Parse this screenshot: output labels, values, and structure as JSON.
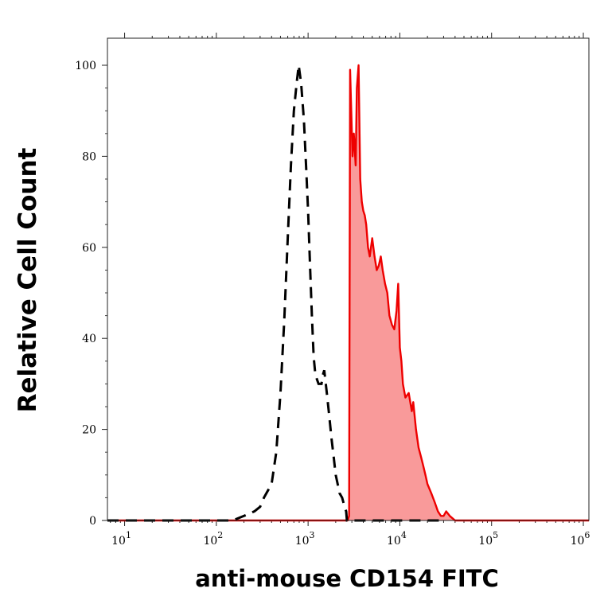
{
  "chart_data": {
    "type": "area",
    "title": "",
    "xlabel": "anti-mouse CD154 FITC",
    "ylabel": "Relative Cell Count",
    "x_scale": "log",
    "xlim": [
      6.5,
      1150000
    ],
    "ylim": [
      0,
      100
    ],
    "x_ticks": [
      {
        "base": "10",
        "exp": "1",
        "value": 10
      },
      {
        "base": "10",
        "exp": "2",
        "value": 100
      },
      {
        "base": "10",
        "exp": "3",
        "value": 1000
      },
      {
        "base": "10",
        "exp": "4",
        "value": 10000
      },
      {
        "base": "10",
        "exp": "5",
        "value": 100000
      },
      {
        "base": "10",
        "exp": "6",
        "value": 1000000
      }
    ],
    "y_ticks": [
      "0",
      "20",
      "40",
      "60",
      "80",
      "100"
    ],
    "grid": false,
    "legend": "none",
    "colors": {
      "stained_line": "#ee0000",
      "stained_fill": "#f99a9a",
      "control_line": "#000000"
    },
    "series": [
      {
        "style": "dashed-black",
        "x": [
          6.5,
          100,
          150,
          200,
          260,
          300,
          330,
          400,
          450,
          500,
          550,
          600,
          650,
          700,
          750,
          790,
          840,
          900,
          950,
          1000,
          1050,
          1100,
          1150,
          1200,
          1300,
          1400,
          1450,
          1500,
          1600,
          1700,
          1800,
          1900,
          2000,
          2100,
          2200,
          2350,
          2500,
          2600,
          2650,
          3000,
          10000,
          30000
        ],
        "y": [
          0,
          0,
          0,
          1,
          2,
          3,
          5,
          8,
          15,
          28,
          44,
          62,
          78,
          90,
          96,
          100,
          96,
          88,
          78,
          68,
          56,
          45,
          36,
          32,
          30,
          30,
          32,
          33,
          28,
          23,
          18,
          14,
          10,
          8,
          6,
          5,
          3,
          2,
          0,
          0,
          0,
          0
        ]
      },
      {
        "style": "filled-red",
        "x": [
          6.5,
          100,
          1000,
          2700,
          2800,
          2870,
          3050,
          3150,
          3300,
          3400,
          3550,
          3700,
          3850,
          4000,
          4150,
          4300,
          4500,
          4700,
          5000,
          5300,
          5600,
          5900,
          6200,
          6500,
          6900,
          7300,
          7700,
          8200,
          8700,
          9200,
          9600,
          10000,
          10400,
          10800,
          11500,
          12500,
          13500,
          14000,
          15000,
          16000,
          17000,
          18000,
          19000,
          20000,
          22000,
          24000,
          26000,
          28000,
          30000,
          32000,
          35000,
          40000,
          100000,
          1150000
        ],
        "y": [
          0,
          0,
          0,
          0,
          1,
          99,
          80,
          85,
          78,
          95,
          100,
          75,
          70,
          68,
          67,
          65,
          60,
          58,
          62,
          58,
          55,
          56,
          58,
          55,
          52,
          50,
          45,
          43,
          42,
          46,
          52,
          38,
          35,
          30,
          27,
          28,
          24,
          26,
          20,
          16,
          14,
          12,
          10,
          8,
          6,
          4,
          2,
          1,
          1,
          2,
          1,
          0,
          0,
          0
        ]
      }
    ]
  }
}
